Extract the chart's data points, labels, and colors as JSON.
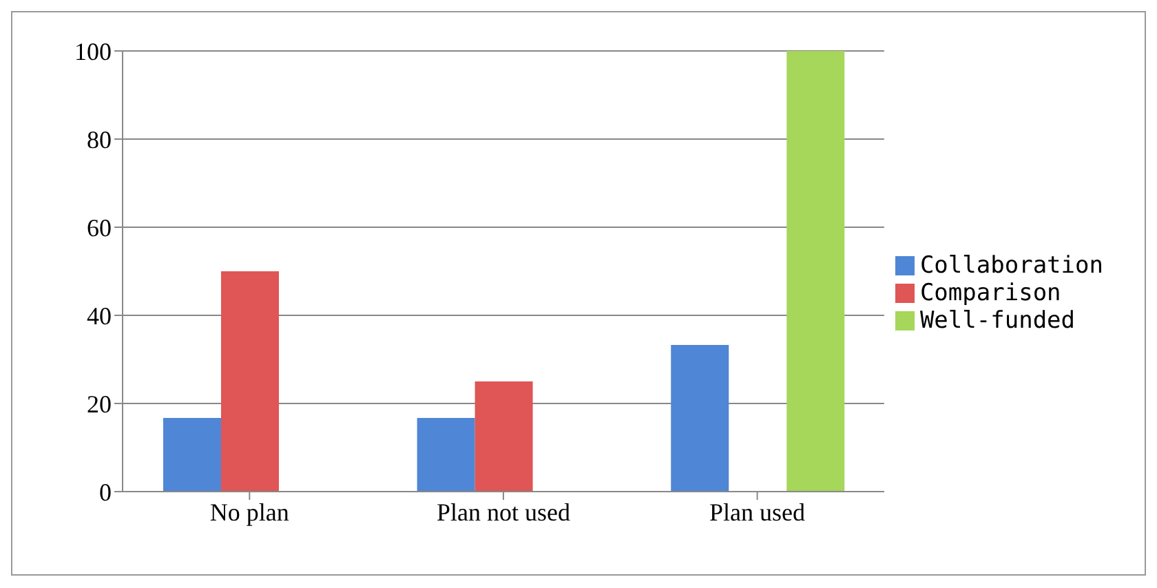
{
  "chart_data": {
    "type": "bar",
    "categories": [
      "No plan",
      "Plan not used",
      "Plan used"
    ],
    "series": [
      {
        "name": "Collaboration",
        "color": "#4f86d6",
        "values": [
          16.7,
          16.7,
          33.3
        ]
      },
      {
        "name": "Comparison",
        "color": "#e05555",
        "values": [
          50,
          25,
          null
        ]
      },
      {
        "name": "Well-funded",
        "color": "#a6d65a",
        "values": [
          null,
          null,
          100
        ]
      }
    ],
    "ylim": [
      0,
      100
    ],
    "yticks": [
      0,
      20,
      40,
      60,
      80,
      100
    ],
    "grid": "y",
    "legend": "right"
  }
}
